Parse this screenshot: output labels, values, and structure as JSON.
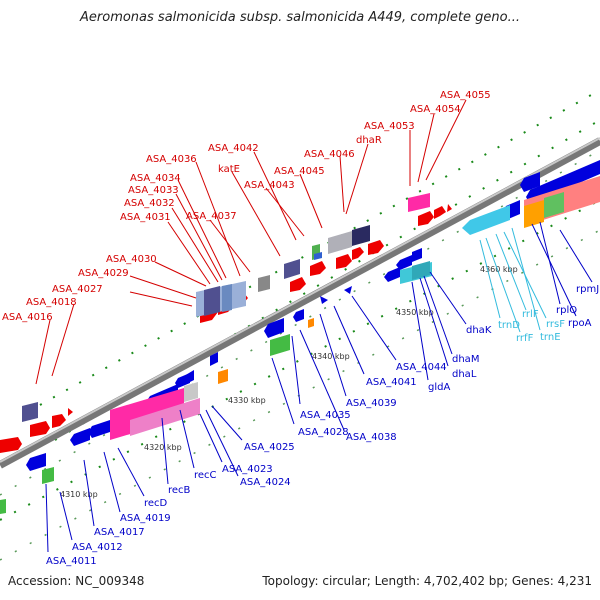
{
  "title": "Aeromonas salmonicida subsp. salmonicida A449, complete geno...",
  "footer": {
    "accession": "Accession: NC_009348",
    "summary": "Topology: circular; Length: 4,702,402 bp; Genes: 4,231"
  },
  "colors": {
    "forward_label": "#d40000",
    "reverse_label": "#0000c8",
    "rna_label": "#33bbdd",
    "backbone": "#8a8a8a",
    "tick": "#008800"
  },
  "ruler": [
    "4310 kbp",
    "4320 kbp",
    "4330 kbp",
    "4340 kbp",
    "4350 kbp",
    "4360 kbp"
  ],
  "forward_genes": [
    "ASA_4016",
    "ASA_4018",
    "ASA_4027",
    "ASA_4029",
    "ASA_4030",
    "ASA_4031",
    "ASA_4032",
    "ASA_4033",
    "ASA_4034",
    "ASA_4036",
    "ASA_4037",
    "katE",
    "ASA_4042",
    "ASA_4043",
    "ASA_4045",
    "ASA_4046",
    "dhaR",
    "ASA_4053",
    "ASA_4054",
    "ASA_4055"
  ],
  "reverse_genes": [
    "ASA_4011",
    "ASA_4012",
    "ASA_4017",
    "ASA_4019",
    "recD",
    "recB",
    "recC",
    "ASA_4023",
    "ASA_4024",
    "ASA_4025",
    "ASA_4028",
    "ASA_4035",
    "ASA_4038",
    "ASA_4039",
    "ASA_4041",
    "ASA_4044",
    "gldA",
    "dhaL",
    "dhaM",
    "dhaK",
    "rpoA",
    "rplQ",
    "rpmJ"
  ],
  "rna_genes": [
    "trnD",
    "rrfF",
    "rrlF",
    "rrsF",
    "trnE"
  ]
}
